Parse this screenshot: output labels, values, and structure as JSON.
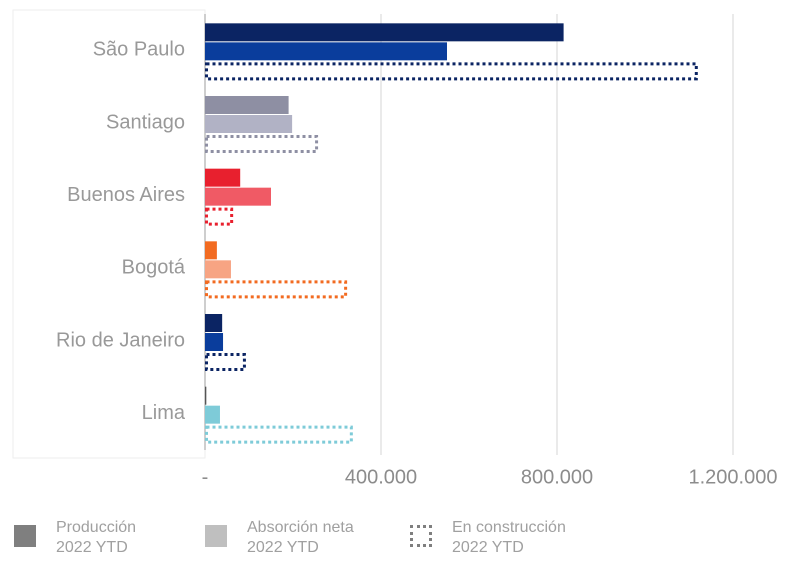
{
  "chart_data": {
    "type": "bar",
    "orientation": "horizontal",
    "categories": [
      "São Paulo",
      "Santiago",
      "Buenos Aires",
      "Bogotá",
      "Rio de Janeiro",
      "Lima"
    ],
    "series": [
      {
        "name": "Producción 2022 YTD",
        "color": "#7f7f7f",
        "style": "solid",
        "colors": [
          "#0b2463",
          "#8e8fa3",
          "#e8202e",
          "#f26b21",
          "#0b2463",
          "#555555"
        ],
        "values": [
          815000,
          190000,
          80000,
          27000,
          39000,
          3000
        ]
      },
      {
        "name": "Absorción neta 2022 YTD",
        "color": "#bfbfbf",
        "style": "solid",
        "colors": [
          "#0a3d9c",
          "#b1b2c5",
          "#f05a65",
          "#f7a483",
          "#0a3d9c",
          "#7ecbd8"
        ],
        "values": [
          550000,
          198000,
          150000,
          59000,
          41000,
          34000
        ]
      },
      {
        "name": "En construcción 2022 YTD",
        "color": "#7f7f7f",
        "style": "dotted",
        "colors": [
          "#0b2463",
          "#8e8fa3",
          "#e8202e",
          "#f26b21",
          "#0b2463",
          "#7ecbd8"
        ],
        "values": [
          1120000,
          257000,
          64000,
          323000,
          93000,
          336000
        ]
      }
    ],
    "xlim": [
      0,
      1300000
    ],
    "xticks": [
      {
        "value": 0,
        "label": "-"
      },
      {
        "value": 400000,
        "label": "400.000"
      },
      {
        "value": 800000,
        "label": "800.000"
      },
      {
        "value": 1200000,
        "label": "1.200.000"
      }
    ],
    "grid": true
  }
}
